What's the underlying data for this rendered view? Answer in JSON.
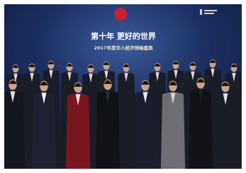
{
  "screen": {
    "title": "第十年 更好的世界",
    "subtitle": "2017年度华人经济领袖盛典"
  }
}
